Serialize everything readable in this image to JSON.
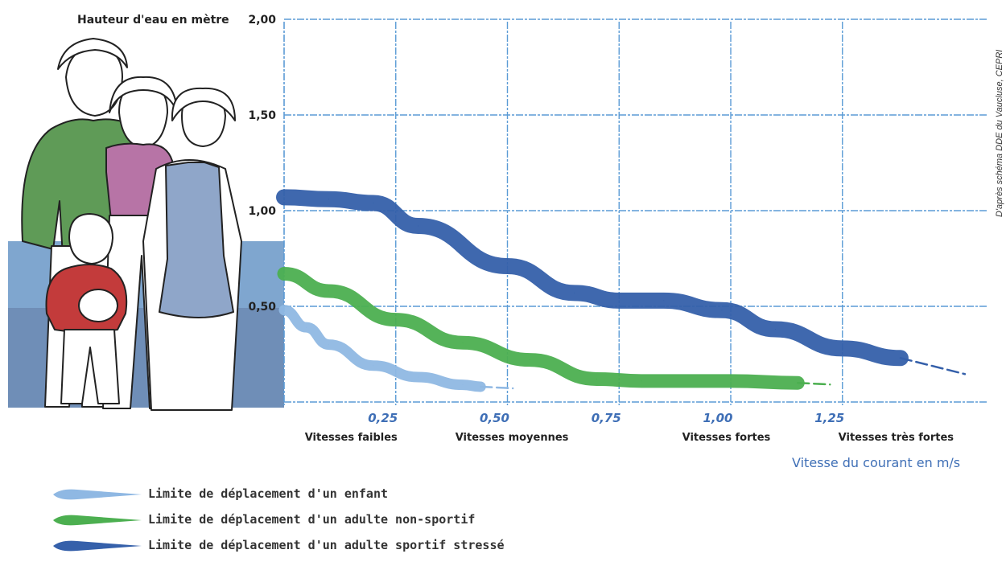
{
  "chart_data": {
    "type": "line",
    "ylabel": "Hauteur d'eau en mètre",
    "xlabel": "Vitesse du courant en m/s",
    "xlim": [
      0,
      1.5
    ],
    "ylim": [
      0,
      2.0
    ],
    "x_ticks": [
      {
        "value": 0.25,
        "label": "0,25"
      },
      {
        "value": 0.5,
        "label": "0,50"
      },
      {
        "value": 0.75,
        "label": "0,75"
      },
      {
        "value": 1.0,
        "label": "1,00"
      },
      {
        "value": 1.25,
        "label": "1,25"
      }
    ],
    "y_ticks": [
      {
        "value": 0.5,
        "label": "0,50"
      },
      {
        "value": 1.0,
        "label": "1,00"
      },
      {
        "value": 1.5,
        "label": "1,50"
      },
      {
        "value": 2.0,
        "label": "2,00"
      }
    ],
    "speed_categories": [
      {
        "x": 0.15,
        "label": "Vitesses faibles"
      },
      {
        "x": 0.51,
        "label": "Vitesses moyennes"
      },
      {
        "x": 0.99,
        "label": "Vitesses fortes"
      },
      {
        "x": 1.37,
        "label": "Vitesses très fortes"
      }
    ],
    "grid": true,
    "legend_position": "bottom-left",
    "series": [
      {
        "name": "Limite de déplacement d'un enfant",
        "color": "#8fb8e3",
        "points": [
          [
            0.0,
            0.48
          ],
          [
            0.05,
            0.39
          ],
          [
            0.1,
            0.3
          ],
          [
            0.2,
            0.19
          ],
          [
            0.3,
            0.13
          ],
          [
            0.4,
            0.09
          ],
          [
            0.44,
            0.08
          ]
        ]
      },
      {
        "name": "Limite de déplacement d'un adulte non-sportif",
        "color": "#4caf50",
        "points": [
          [
            0.0,
            0.67
          ],
          [
            0.1,
            0.58
          ],
          [
            0.25,
            0.43
          ],
          [
            0.4,
            0.31
          ],
          [
            0.55,
            0.22
          ],
          [
            0.7,
            0.12
          ],
          [
            0.8,
            0.11
          ],
          [
            1.0,
            0.11
          ],
          [
            1.15,
            0.1
          ]
        ]
      },
      {
        "name": "Limite de déplacement d'un adulte sportif stressé",
        "color": "#3560aa",
        "points": [
          [
            0.0,
            1.07
          ],
          [
            0.1,
            1.06
          ],
          [
            0.2,
            1.04
          ],
          [
            0.3,
            0.92
          ],
          [
            0.5,
            0.71
          ],
          [
            0.65,
            0.57
          ],
          [
            0.75,
            0.53
          ],
          [
            0.85,
            0.53
          ],
          [
            0.98,
            0.48
          ],
          [
            1.1,
            0.38
          ],
          [
            1.25,
            0.28
          ],
          [
            1.38,
            0.23
          ]
        ]
      }
    ],
    "source": "D'après schéma DDE du Vaucluse, CEPRI"
  }
}
